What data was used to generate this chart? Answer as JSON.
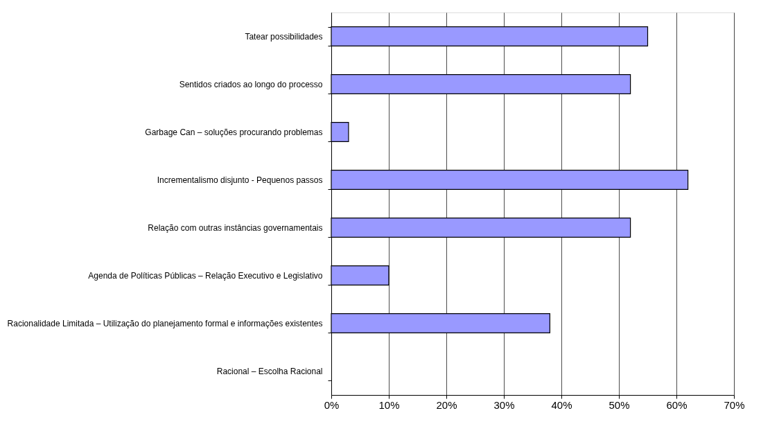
{
  "chart_data": {
    "type": "bar",
    "orientation": "horizontal",
    "categories": [
      "Tatear possibilidades",
      "Sentidos criados ao longo do processo",
      "Garbage Can – soluções procurando problemas",
      "Incrementalismo disjunto - Pequenos passos",
      "Relação com outras instâncias governamentais",
      "Agenda de Políticas Públicas – Relação Executivo e Legislativo",
      "Racionalidade Limitada – Utilização do planejamento formal e informações existentes",
      "Racional – Escolha Racional"
    ],
    "values": [
      55,
      52,
      3,
      62,
      52,
      10,
      38,
      0
    ],
    "color": "#9999ff",
    "xlim": [
      0,
      70
    ],
    "xticks": [
      {
        "value": 0,
        "label": "0%"
      },
      {
        "value": 10,
        "label": "10%"
      },
      {
        "value": 20,
        "label": "20%"
      },
      {
        "value": 30,
        "label": "30%"
      },
      {
        "value": 40,
        "label": "40%"
      },
      {
        "value": 50,
        "label": "50%"
      },
      {
        "value": 60,
        "label": "60%"
      },
      {
        "value": 70,
        "label": "70%"
      }
    ],
    "grid": "x"
  }
}
